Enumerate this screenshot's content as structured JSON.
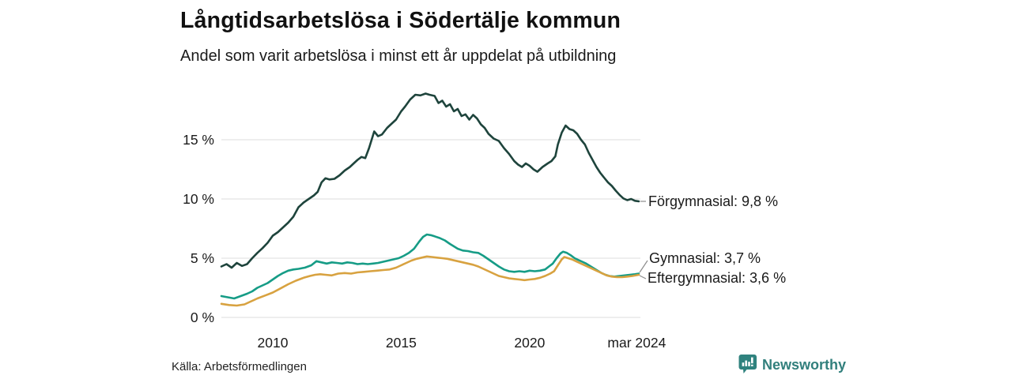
{
  "header": {
    "title": "Långtidsarbetslösa i Södertälje kommun",
    "subtitle": "Andel som varit arbetslösa i minst ett år uppdelat på utbildning"
  },
  "footer": {
    "source": "Källa: Arbetsförmedlingen",
    "brand": "Newsworthy",
    "brand_icon": "newsworthy-chart-bubble-icon",
    "brand_color": "#2f827e"
  },
  "chart_data": {
    "type": "line",
    "title": "Långtidsarbetslösa i Södertälje kommun",
    "subtitle": "Andel som varit arbetslösa i minst ett år uppdelat på utbildning",
    "xlabel": "",
    "ylabel": "",
    "x_range": [
      2008,
      2024.25
    ],
    "y_range": [
      0,
      19
    ],
    "grid": "horizontal",
    "grid_color": "#e4e4e4",
    "connector_color": "#8c8c8c",
    "legend_position": "right-end-labels",
    "y_ticks": [
      {
        "value": 0,
        "label": "0 %"
      },
      {
        "value": 5,
        "label": "5 %"
      },
      {
        "value": 10,
        "label": "10 %"
      },
      {
        "value": 15,
        "label": "15 %"
      }
    ],
    "x_ticks": [
      {
        "value": 2010,
        "label": "2010"
      },
      {
        "value": 2015,
        "label": "2015"
      },
      {
        "value": 2020,
        "label": "2020"
      },
      {
        "value": 2024.17,
        "label": "mar 2024"
      }
    ],
    "series": [
      {
        "name": "Förgymnasial",
        "color": "#1e443c",
        "end_value": 9.8,
        "end_label": "Förgymnasial: 9,8 %",
        "points": [
          [
            2008,
            4.3
          ],
          [
            2008.2,
            4.5
          ],
          [
            2008.4,
            4.2
          ],
          [
            2008.6,
            4.6
          ],
          [
            2008.8,
            4.35
          ],
          [
            2009,
            4.5
          ],
          [
            2009.2,
            5.0
          ],
          [
            2009.4,
            5.45
          ],
          [
            2009.6,
            5.85
          ],
          [
            2009.8,
            6.3
          ],
          [
            2010,
            6.9
          ],
          [
            2010.2,
            7.2
          ],
          [
            2010.4,
            7.6
          ],
          [
            2010.6,
            8.0
          ],
          [
            2010.8,
            8.5
          ],
          [
            2011,
            9.3
          ],
          [
            2011.2,
            9.7
          ],
          [
            2011.4,
            10.0
          ],
          [
            2011.6,
            10.3
          ],
          [
            2011.75,
            10.6
          ],
          [
            2011.9,
            11.4
          ],
          [
            2012.05,
            11.75
          ],
          [
            2012.2,
            11.65
          ],
          [
            2012.4,
            11.7
          ],
          [
            2012.6,
            12.0
          ],
          [
            2012.8,
            12.4
          ],
          [
            2013,
            12.7
          ],
          [
            2013.15,
            13.0
          ],
          [
            2013.3,
            13.3
          ],
          [
            2013.45,
            13.55
          ],
          [
            2013.6,
            13.45
          ],
          [
            2013.75,
            14.3
          ],
          [
            2013.95,
            15.7
          ],
          [
            2014.1,
            15.3
          ],
          [
            2014.25,
            15.45
          ],
          [
            2014.45,
            16.0
          ],
          [
            2014.6,
            16.3
          ],
          [
            2014.8,
            16.7
          ],
          [
            2015,
            17.4
          ],
          [
            2015.15,
            17.8
          ],
          [
            2015.35,
            18.4
          ],
          [
            2015.55,
            18.8
          ],
          [
            2015.75,
            18.75
          ],
          [
            2015.95,
            18.9
          ],
          [
            2016.1,
            18.8
          ],
          [
            2016.3,
            18.7
          ],
          [
            2016.45,
            18.1
          ],
          [
            2016.6,
            18.3
          ],
          [
            2016.75,
            17.8
          ],
          [
            2016.9,
            18.0
          ],
          [
            2017.05,
            17.4
          ],
          [
            2017.2,
            17.6
          ],
          [
            2017.35,
            17.0
          ],
          [
            2017.5,
            17.15
          ],
          [
            2017.65,
            16.7
          ],
          [
            2017.8,
            17.1
          ],
          [
            2017.95,
            16.8
          ],
          [
            2018.1,
            16.3
          ],
          [
            2018.25,
            16.0
          ],
          [
            2018.4,
            15.5
          ],
          [
            2018.6,
            15.1
          ],
          [
            2018.8,
            14.9
          ],
          [
            2019,
            14.3
          ],
          [
            2019.2,
            13.8
          ],
          [
            2019.4,
            13.2
          ],
          [
            2019.55,
            12.9
          ],
          [
            2019.7,
            12.7
          ],
          [
            2019.85,
            13.0
          ],
          [
            2020,
            12.8
          ],
          [
            2020.15,
            12.5
          ],
          [
            2020.3,
            12.3
          ],
          [
            2020.5,
            12.7
          ],
          [
            2020.7,
            13.0
          ],
          [
            2020.85,
            13.2
          ],
          [
            2021,
            13.6
          ],
          [
            2021.1,
            14.6
          ],
          [
            2021.25,
            15.6
          ],
          [
            2021.4,
            16.2
          ],
          [
            2021.55,
            15.9
          ],
          [
            2021.7,
            15.8
          ],
          [
            2021.85,
            15.5
          ],
          [
            2022,
            15.0
          ],
          [
            2022.15,
            14.6
          ],
          [
            2022.3,
            13.9
          ],
          [
            2022.45,
            13.3
          ],
          [
            2022.6,
            12.7
          ],
          [
            2022.75,
            12.2
          ],
          [
            2022.9,
            11.8
          ],
          [
            2023.05,
            11.4
          ],
          [
            2023.2,
            11.1
          ],
          [
            2023.35,
            10.7
          ],
          [
            2023.5,
            10.35
          ],
          [
            2023.65,
            10.05
          ],
          [
            2023.8,
            9.9
          ],
          [
            2023.95,
            10.0
          ],
          [
            2024.1,
            9.85
          ],
          [
            2024.25,
            9.8
          ]
        ]
      },
      {
        "name": "Gymnasial",
        "color": "#169c86",
        "end_value": 3.7,
        "end_label": "Gymnasial: 3,7 %",
        "points": [
          [
            2008,
            1.8
          ],
          [
            2008.25,
            1.7
          ],
          [
            2008.5,
            1.6
          ],
          [
            2008.75,
            1.8
          ],
          [
            2009,
            2.0
          ],
          [
            2009.2,
            2.2
          ],
          [
            2009.4,
            2.5
          ],
          [
            2009.6,
            2.7
          ],
          [
            2009.8,
            2.9
          ],
          [
            2010,
            3.2
          ],
          [
            2010.2,
            3.5
          ],
          [
            2010.4,
            3.75
          ],
          [
            2010.6,
            3.95
          ],
          [
            2010.8,
            4.05
          ],
          [
            2011,
            4.1
          ],
          [
            2011.25,
            4.2
          ],
          [
            2011.5,
            4.4
          ],
          [
            2011.7,
            4.75
          ],
          [
            2011.9,
            4.65
          ],
          [
            2012.1,
            4.55
          ],
          [
            2012.3,
            4.65
          ],
          [
            2012.5,
            4.6
          ],
          [
            2012.7,
            4.55
          ],
          [
            2012.9,
            4.65
          ],
          [
            2013.1,
            4.6
          ],
          [
            2013.3,
            4.5
          ],
          [
            2013.5,
            4.55
          ],
          [
            2013.7,
            4.5
          ],
          [
            2013.9,
            4.55
          ],
          [
            2014.1,
            4.6
          ],
          [
            2014.3,
            4.7
          ],
          [
            2014.5,
            4.8
          ],
          [
            2014.7,
            4.9
          ],
          [
            2014.9,
            5.0
          ],
          [
            2015.1,
            5.2
          ],
          [
            2015.3,
            5.45
          ],
          [
            2015.5,
            5.8
          ],
          [
            2015.7,
            6.4
          ],
          [
            2015.85,
            6.8
          ],
          [
            2016,
            7.0
          ],
          [
            2016.15,
            6.95
          ],
          [
            2016.3,
            6.85
          ],
          [
            2016.5,
            6.7
          ],
          [
            2016.7,
            6.5
          ],
          [
            2016.9,
            6.2
          ],
          [
            2017.05,
            6.0
          ],
          [
            2017.2,
            5.8
          ],
          [
            2017.4,
            5.65
          ],
          [
            2017.6,
            5.6
          ],
          [
            2017.8,
            5.5
          ],
          [
            2018,
            5.45
          ],
          [
            2018.2,
            5.2
          ],
          [
            2018.4,
            4.9
          ],
          [
            2018.6,
            4.6
          ],
          [
            2018.8,
            4.3
          ],
          [
            2019,
            4.05
          ],
          [
            2019.2,
            3.9
          ],
          [
            2019.4,
            3.85
          ],
          [
            2019.6,
            3.9
          ],
          [
            2019.8,
            3.85
          ],
          [
            2020,
            3.95
          ],
          [
            2020.2,
            3.9
          ],
          [
            2020.4,
            3.95
          ],
          [
            2020.6,
            4.05
          ],
          [
            2020.75,
            4.3
          ],
          [
            2020.9,
            4.55
          ],
          [
            2021.05,
            5.0
          ],
          [
            2021.2,
            5.4
          ],
          [
            2021.3,
            5.55
          ],
          [
            2021.45,
            5.45
          ],
          [
            2021.6,
            5.25
          ],
          [
            2021.75,
            5.0
          ],
          [
            2021.9,
            4.85
          ],
          [
            2022.05,
            4.7
          ],
          [
            2022.2,
            4.55
          ],
          [
            2022.35,
            4.35
          ],
          [
            2022.5,
            4.15
          ],
          [
            2022.65,
            3.95
          ],
          [
            2022.8,
            3.75
          ],
          [
            2022.95,
            3.6
          ],
          [
            2023.1,
            3.5
          ],
          [
            2023.3,
            3.45
          ],
          [
            2023.5,
            3.5
          ],
          [
            2023.7,
            3.55
          ],
          [
            2023.9,
            3.6
          ],
          [
            2024.1,
            3.65
          ],
          [
            2024.25,
            3.7
          ]
        ]
      },
      {
        "name": "Eftergymnasial",
        "color": "#d8a240",
        "end_value": 3.6,
        "end_label": "Eftergymnasial: 3,6 %",
        "points": [
          [
            2008,
            1.15
          ],
          [
            2008.3,
            1.05
          ],
          [
            2008.6,
            1.0
          ],
          [
            2008.9,
            1.1
          ],
          [
            2009.1,
            1.3
          ],
          [
            2009.4,
            1.6
          ],
          [
            2009.7,
            1.85
          ],
          [
            2010,
            2.1
          ],
          [
            2010.3,
            2.45
          ],
          [
            2010.6,
            2.8
          ],
          [
            2010.9,
            3.1
          ],
          [
            2011.2,
            3.35
          ],
          [
            2011.45,
            3.5
          ],
          [
            2011.65,
            3.6
          ],
          [
            2011.85,
            3.65
          ],
          [
            2012.05,
            3.6
          ],
          [
            2012.3,
            3.55
          ],
          [
            2012.55,
            3.7
          ],
          [
            2012.8,
            3.75
          ],
          [
            2013.05,
            3.7
          ],
          [
            2013.3,
            3.8
          ],
          [
            2013.55,
            3.85
          ],
          [
            2013.8,
            3.9
          ],
          [
            2014.05,
            3.95
          ],
          [
            2014.3,
            4.0
          ],
          [
            2014.55,
            4.05
          ],
          [
            2014.8,
            4.2
          ],
          [
            2015,
            4.4
          ],
          [
            2015.2,
            4.6
          ],
          [
            2015.4,
            4.8
          ],
          [
            2015.6,
            4.95
          ],
          [
            2015.8,
            5.05
          ],
          [
            2016,
            5.15
          ],
          [
            2016.2,
            5.1
          ],
          [
            2016.4,
            5.05
          ],
          [
            2016.6,
            5.0
          ],
          [
            2016.8,
            4.95
          ],
          [
            2017,
            4.85
          ],
          [
            2017.2,
            4.75
          ],
          [
            2017.4,
            4.65
          ],
          [
            2017.6,
            4.55
          ],
          [
            2017.8,
            4.45
          ],
          [
            2018,
            4.3
          ],
          [
            2018.2,
            4.1
          ],
          [
            2018.4,
            3.9
          ],
          [
            2018.6,
            3.7
          ],
          [
            2018.8,
            3.5
          ],
          [
            2019,
            3.4
          ],
          [
            2019.2,
            3.3
          ],
          [
            2019.4,
            3.25
          ],
          [
            2019.6,
            3.2
          ],
          [
            2019.8,
            3.15
          ],
          [
            2020,
            3.2
          ],
          [
            2020.2,
            3.25
          ],
          [
            2020.4,
            3.35
          ],
          [
            2020.6,
            3.5
          ],
          [
            2020.8,
            3.7
          ],
          [
            2020.95,
            3.9
          ],
          [
            2021.1,
            4.4
          ],
          [
            2021.25,
            4.9
          ],
          [
            2021.35,
            5.1
          ],
          [
            2021.5,
            5.0
          ],
          [
            2021.65,
            4.9
          ],
          [
            2021.8,
            4.75
          ],
          [
            2022,
            4.55
          ],
          [
            2022.2,
            4.35
          ],
          [
            2022.4,
            4.15
          ],
          [
            2022.6,
            3.95
          ],
          [
            2022.8,
            3.75
          ],
          [
            2023,
            3.55
          ],
          [
            2023.2,
            3.45
          ],
          [
            2023.4,
            3.4
          ],
          [
            2023.6,
            3.4
          ],
          [
            2023.8,
            3.45
          ],
          [
            2024,
            3.5
          ],
          [
            2024.25,
            3.6
          ]
        ]
      }
    ]
  }
}
